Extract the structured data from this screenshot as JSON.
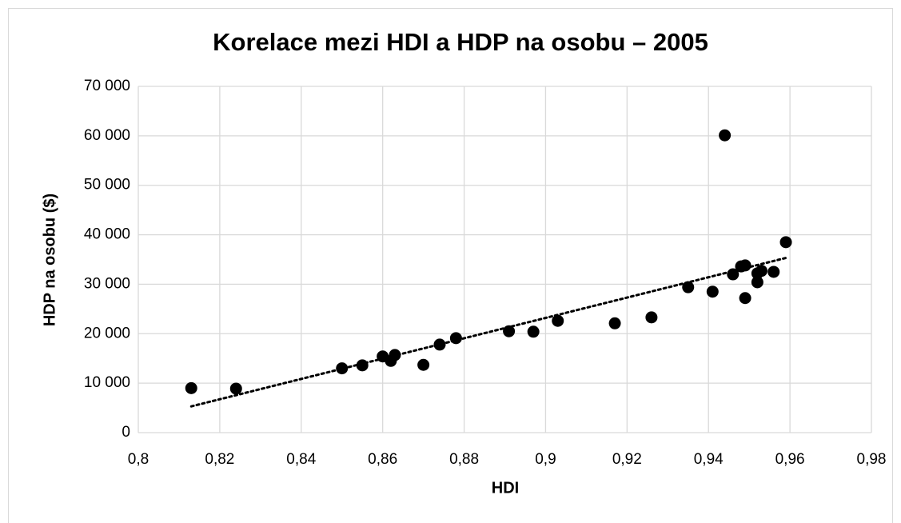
{
  "chart_data": {
    "type": "scatter",
    "title": "Korelace mezi HDI a HDP na osobu – 2005",
    "xlabel": "HDI",
    "ylabel": "HDP na osobu ($)",
    "x": [
      0.813,
      0.824,
      0.85,
      0.855,
      0.86,
      0.862,
      0.863,
      0.87,
      0.874,
      0.878,
      0.891,
      0.897,
      0.903,
      0.917,
      0.926,
      0.935,
      0.941,
      0.944,
      0.946,
      0.948,
      0.949,
      0.949,
      0.952,
      0.952,
      0.953,
      0.956,
      0.959
    ],
    "values": [
      9000,
      8900,
      13000,
      13600,
      15400,
      14500,
      15700,
      13700,
      17800,
      19100,
      20500,
      20400,
      22600,
      22100,
      23300,
      29400,
      28500,
      60100,
      32000,
      33600,
      33800,
      27200,
      30400,
      32200,
      32700,
      32500,
      38500
    ],
    "color": "#000000",
    "trendline": "linear",
    "grid": true,
    "xlim": [
      0.8,
      0.98
    ],
    "xticks": [
      {
        "value": 0.8,
        "label": "0,8"
      },
      {
        "value": 0.82,
        "label": "0,82"
      },
      {
        "value": 0.84,
        "label": "0,84"
      },
      {
        "value": 0.86,
        "label": "0,86"
      },
      {
        "value": 0.88,
        "label": "0,88"
      },
      {
        "value": 0.9,
        "label": "0,9"
      },
      {
        "value": 0.92,
        "label": "0,92"
      },
      {
        "value": 0.94,
        "label": "0,94"
      },
      {
        "value": 0.96,
        "label": "0,96"
      },
      {
        "value": 0.98,
        "label": "0,98"
      }
    ],
    "ylim": [
      0,
      70000
    ],
    "yticks": [
      0,
      {
        "value": 10000,
        "label": "10 000"
      },
      {
        "value": 20000,
        "label": "20 000"
      },
      {
        "value": 30000,
        "label": "30 000"
      },
      {
        "value": 40000,
        "label": "40 000"
      },
      {
        "value": 50000,
        "label": "50 000"
      },
      {
        "value": 60000,
        "label": "60 000"
      },
      {
        "value": 70000,
        "label": "70 000"
      }
    ]
  }
}
